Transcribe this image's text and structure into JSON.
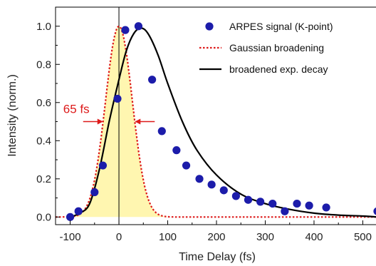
{
  "chart_data": {
    "type": "scatter",
    "xlabel": "Time Delay (fs)",
    "ylabel": "Intensity (norm.)",
    "xlim": [
      -130,
      530
    ],
    "ylim": [
      -0.04,
      1.1
    ],
    "x_ticks": [
      -100,
      0,
      100,
      200,
      300,
      400,
      500
    ],
    "x_tick_labels": [
      "-100",
      "0",
      "100",
      "200",
      "300",
      "400",
      "500"
    ],
    "y_ticks": [
      0.0,
      0.2,
      0.4,
      0.6,
      0.8,
      1.0
    ],
    "y_tick_labels": [
      "0.0",
      "0.2",
      "0.4",
      "0.6",
      "0.8",
      "1.0"
    ],
    "legend_position": "top-right",
    "colors": {
      "points": "#1c1caa",
      "gaussian": "#dd1a1a",
      "decay": "#000000",
      "fill": "#fff6b0",
      "annotation": "#dd1a1a"
    },
    "series": [
      {
        "name": "ARPES signal (K-point)",
        "kind": "points",
        "x": [
          -100,
          -83,
          -50,
          -33,
          -3,
          13,
          40,
          68,
          88,
          118,
          138,
          165,
          190,
          215,
          240,
          265,
          290,
          315,
          340,
          365,
          390,
          425,
          530
        ],
        "y": [
          0.0,
          0.03,
          0.13,
          0.27,
          0.62,
          0.98,
          1.0,
          0.72,
          0.45,
          0.35,
          0.27,
          0.2,
          0.17,
          0.14,
          0.11,
          0.09,
          0.08,
          0.07,
          0.03,
          0.07,
          0.06,
          0.05,
          0.03
        ]
      },
      {
        "name": "Gaussian broadening",
        "kind": "gaussian",
        "center": 0,
        "fwhm": 65,
        "amplitude": 1.0
      },
      {
        "name": "broadened exp. decay",
        "kind": "convolved-exp-decay",
        "x": [
          -100,
          -80,
          -60,
          -40,
          -20,
          0,
          15,
          30,
          45,
          60,
          80,
          100,
          130,
          160,
          200,
          250,
          300,
          350,
          400,
          450,
          500,
          530
        ],
        "y": [
          0.0,
          0.02,
          0.07,
          0.25,
          0.5,
          0.72,
          0.87,
          0.96,
          0.99,
          0.96,
          0.85,
          0.7,
          0.5,
          0.35,
          0.22,
          0.12,
          0.07,
          0.04,
          0.02,
          0.01,
          0.005,
          0.0
        ]
      }
    ],
    "annotation": {
      "text": "65 fs",
      "y": 0.5,
      "x_left": -32.5,
      "x_right": 32.5
    },
    "vertical_line_x": 0
  }
}
